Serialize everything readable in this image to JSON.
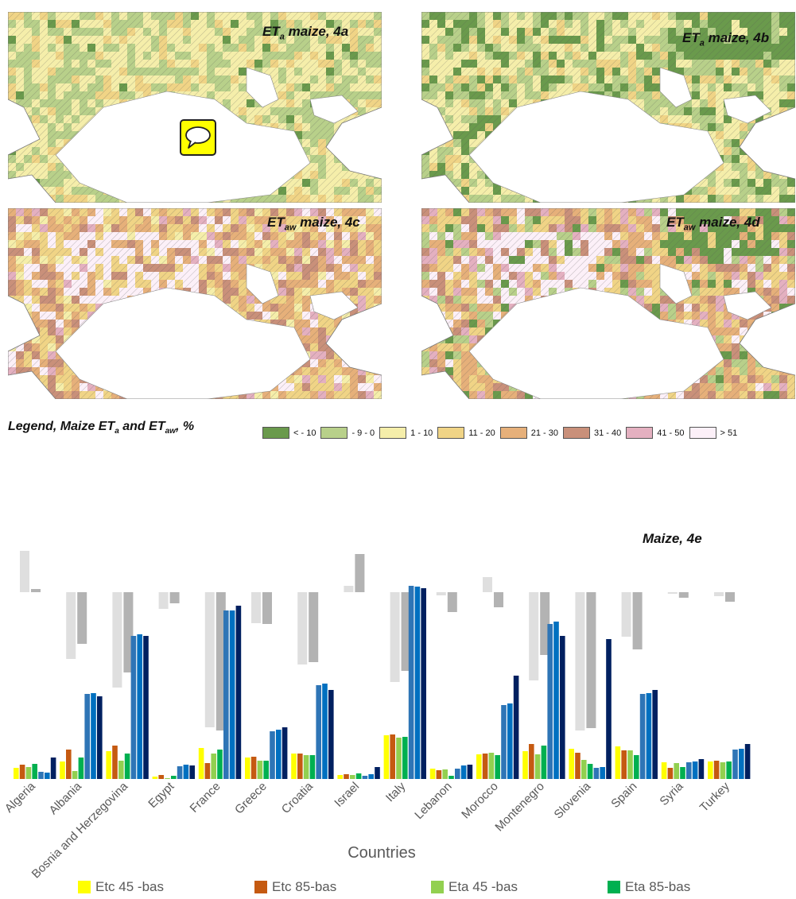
{
  "maps": [
    {
      "id": "4a",
      "title_main": "ET",
      "title_sub": "a",
      "title_rest": " maize, 4a"
    },
    {
      "id": "4b",
      "title_main": "ET",
      "title_sub": "a",
      "title_rest": " maize, 4b"
    },
    {
      "id": "4c",
      "title_main": "ET",
      "title_sub": "aw",
      "title_rest": " maize, 4c"
    },
    {
      "id": "4d",
      "title_main": "ET",
      "title_sub": "aw",
      "title_rest": " maize, 4d"
    }
  ],
  "map_legend": {
    "title_main": "Legend, Maize ET",
    "title_sub1": "a",
    "title_mid": " and ET",
    "title_sub2": "aw",
    "title_end": ", %",
    "items": [
      {
        "label": "< - 10",
        "color": "#6a9a4c"
      },
      {
        "label": "- 9 - 0",
        "color": "#b8d08a"
      },
      {
        "label": "1 - 10",
        "color": "#f5eeaa"
      },
      {
        "label": "11 - 20",
        "color": "#f0d486"
      },
      {
        "label": "21 - 30",
        "color": "#e6b07a"
      },
      {
        "label": "31 - 40",
        "color": "#c9907a"
      },
      {
        "label": "41 - 50",
        "color": "#e4b0c0"
      },
      {
        "label": "> 51",
        "color": "#fcf0f8"
      }
    ]
  },
  "chart_data": {
    "type": "bar",
    "title": "Maize, 4e",
    "xlabel": "Countries",
    "categories": [
      "Algeria",
      "Albania",
      "Bosnia and Herzegovina",
      "Egypt",
      "France",
      "Greece",
      "Croatia",
      "Israel",
      "Italy",
      "Lebanon",
      "Morocco",
      "Montenegro",
      "Slovenia",
      "Spain",
      "Syria",
      "Turkey"
    ],
    "series": [
      {
        "name": "Etc 45 -bas",
        "color": "#ffff00",
        "values": [
          14,
          22,
          35,
          3,
          39,
          27,
          32,
          5,
          55,
          13,
          31,
          35,
          38,
          41,
          21,
          22
        ]
      },
      {
        "name": "Etc 85-bas",
        "color": "#c55a11",
        "values": [
          18,
          37,
          42,
          5,
          20,
          28,
          32,
          6,
          56,
          11,
          32,
          44,
          33,
          36,
          14,
          23
        ]
      },
      {
        "name": "Eta 45 -bas",
        "color": "#92d050",
        "values": [
          15,
          10,
          23,
          1,
          32,
          23,
          30,
          5,
          52,
          12,
          33,
          31,
          24,
          36,
          20,
          21
        ]
      },
      {
        "name": "Eta 85-bas",
        "color": "#00b050",
        "values": [
          19,
          27,
          32,
          4,
          37,
          23,
          30,
          7,
          53,
          4,
          30,
          42,
          19,
          30,
          15,
          22
        ]
      },
      {
        "name": "",
        "color": "#2e75b6",
        "values": [
          9,
          107,
          180,
          16,
          212,
          60,
          118,
          4,
          243,
          13,
          93,
          195,
          14,
          107,
          21,
          37
        ]
      },
      {
        "name": "",
        "color": "#0070c0",
        "values": [
          8,
          108,
          182,
          18,
          212,
          62,
          120,
          6,
          242,
          17,
          95,
          198,
          15,
          108,
          22,
          38
        ]
      },
      {
        "name": "",
        "color": "#002060",
        "values": [
          27,
          104,
          180,
          17,
          218,
          65,
          112,
          15,
          240,
          18,
          130,
          180,
          176,
          112,
          25,
          44
        ]
      }
    ],
    "background_series": [
      {
        "name": "",
        "color": "#d9d9d9",
        "values": [
          52,
          -84,
          -120,
          -21,
          -170,
          -39,
          -91,
          8,
          -113,
          -4,
          19,
          -111,
          -174,
          -56,
          -2,
          -5
        ]
      },
      {
        "name": "",
        "color": "#a6a6a6",
        "values": [
          4,
          -65,
          -101,
          -14,
          -174,
          -40,
          -88,
          48,
          -99,
          -25,
          -19,
          -79,
          -171,
          -72,
          -7,
          -12
        ]
      }
    ],
    "bottom_legend": [
      "Etc 45 -bas",
      "Etc 85-bas",
      "Eta 45 -bas",
      "Eta 85-bas"
    ]
  }
}
